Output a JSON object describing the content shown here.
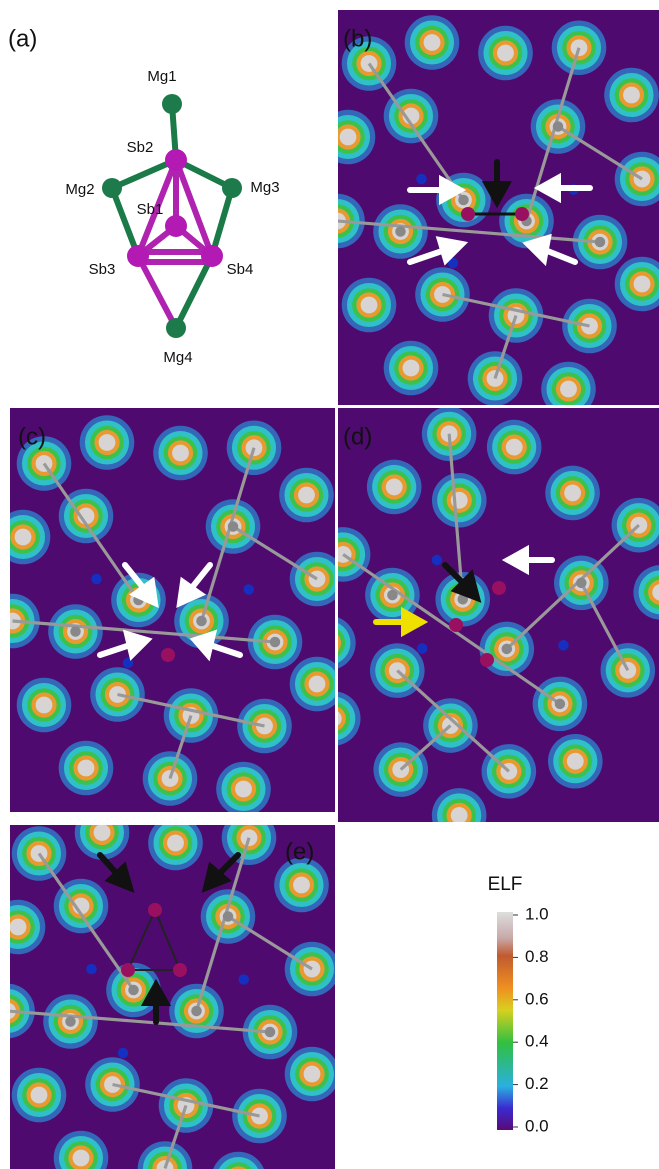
{
  "panel_labels": [
    "(a)",
    "(b)",
    "(c)",
    "(d)",
    "(e)"
  ],
  "atoms": [
    "Mg1",
    "Sb2",
    "Mg2",
    "Mg3",
    "Sb1",
    "Sb3",
    "Sb4",
    "Mg4"
  ],
  "legend": {
    "title": "ELF",
    "lim": [
      0,
      1
    ],
    "ticks": [
      {
        "value": 1,
        "label": "1.0"
      },
      {
        "value": 0.8,
        "label": "0.8"
      },
      {
        "value": 0.6,
        "label": "0.6"
      },
      {
        "value": 0.4,
        "label": "0.4"
      },
      {
        "value": 0.2,
        "label": "0.2"
      },
      {
        "value": 0,
        "label": "0.0"
      }
    ]
  }
}
